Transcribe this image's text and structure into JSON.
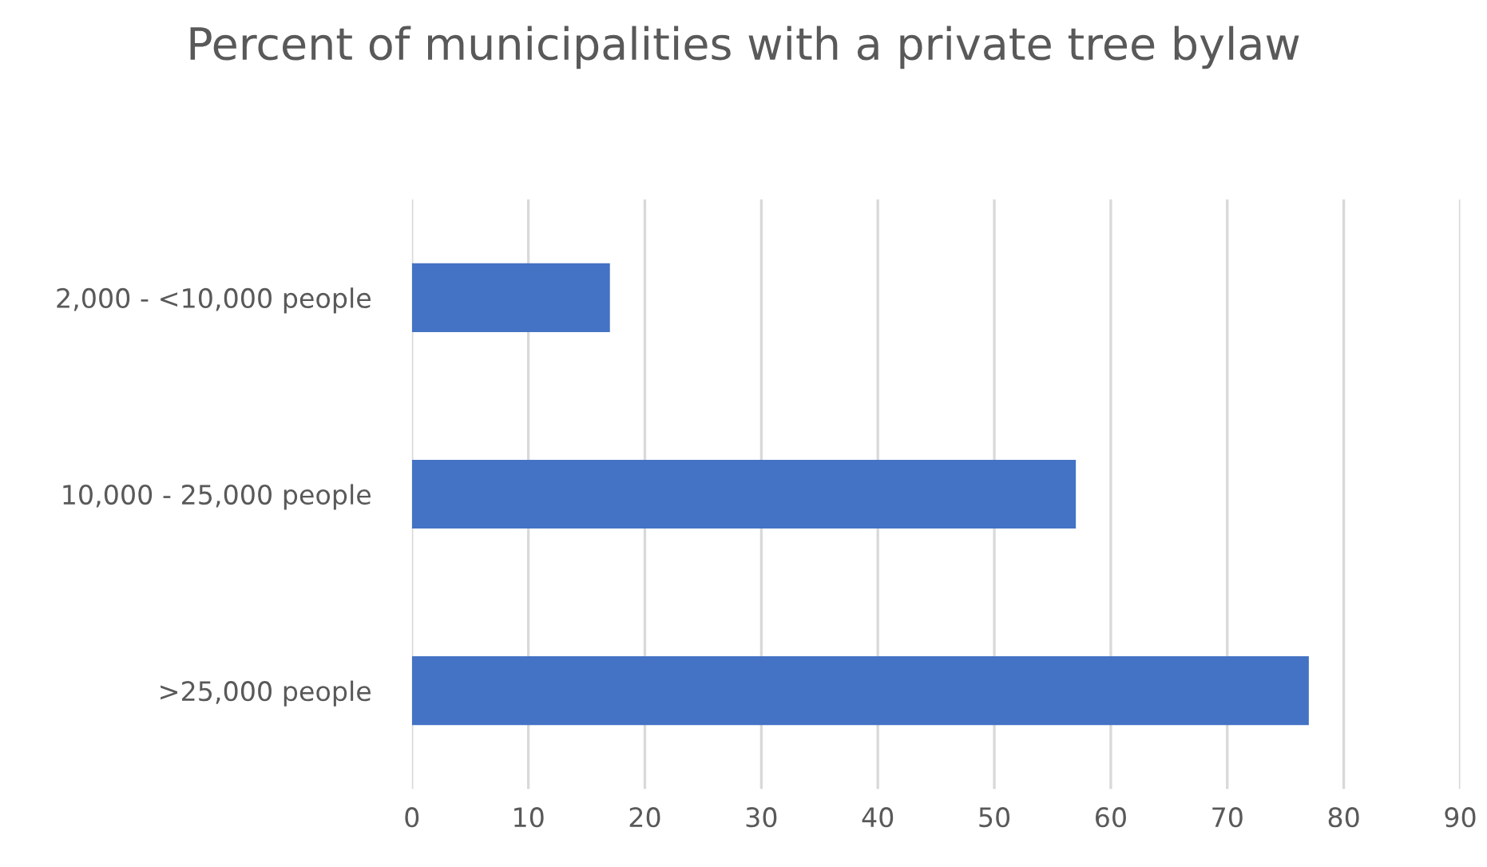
{
  "chart_data": {
    "type": "bar",
    "orientation": "horizontal",
    "title": "Percent of municipalities with a private tree bylaw",
    "categories": [
      "2,000 - <10,000 people",
      "10,000 - 25,000 people",
      ">25,000 people"
    ],
    "values": [
      17,
      57,
      77
    ],
    "color": "#4472c4",
    "xlim": [
      0,
      90
    ],
    "xticks": [
      0,
      10,
      20,
      30,
      40,
      50,
      60,
      70,
      80,
      90
    ],
    "grid": "x"
  }
}
